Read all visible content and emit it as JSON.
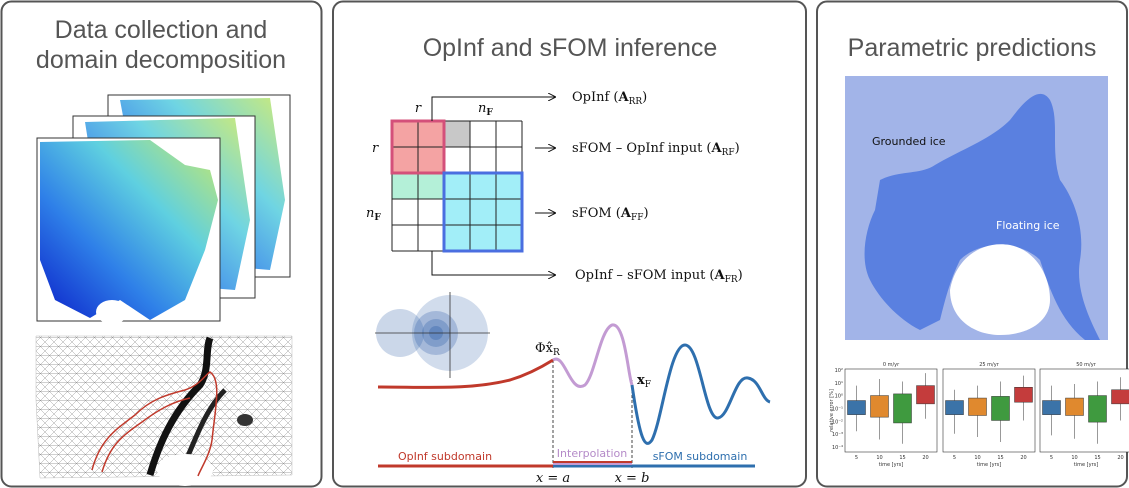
{
  "panels": [
    {
      "title_lines": [
        "Data collection and",
        "domain decomposition"
      ]
    },
    {
      "title": "OpInf and sFOM inference",
      "matrix": {
        "top_labels": [
          {
            "main": "r"
          },
          {
            "main": "n",
            "sub": "F"
          }
        ],
        "side_labels": [
          {
            "main": "r"
          },
          {
            "main": "n",
            "sub": "F"
          }
        ]
      },
      "arrows": [
        {
          "prefix": "OpInf (",
          "matrix": "A",
          "sub": "RR",
          "suffix": ")"
        },
        {
          "prefix": "sFOM – OpInf input (",
          "matrix": "A",
          "sub": "RF",
          "suffix": ")"
        },
        {
          "prefix": "sFOM (",
          "matrix": "A",
          "sub": "FF",
          "suffix": ")"
        },
        {
          "prefix": "OpInf – sFOM input (",
          "matrix": "A",
          "sub": "FR",
          "suffix": ")"
        }
      ],
      "curve_labels": [
        {
          "main": "Φx̂",
          "sub": "R"
        },
        {
          "main": "x",
          "sub": "F"
        }
      ],
      "subdomains": [
        "OpInf subdomain",
        "Interpolation",
        "sFOM subdomain"
      ],
      "bounds": [
        "x = a",
        "x = b"
      ]
    },
    {
      "title": "Parametric predictions",
      "map_labels": [
        "Grounded ice",
        "Floating ice"
      ],
      "boxplots": {
        "titles": [
          "0 m/yr",
          "25 m/yr",
          "50 m/yr"
        ],
        "ylabel": "relative error [%]",
        "xlabel": "time [yrs]",
        "xticks": [
          "5",
          "10",
          "15",
          "20"
        ],
        "yticks": [
          "10²",
          "10¹",
          "10⁰",
          "10⁻¹",
          "10⁻²",
          "10⁻³",
          "10⁻⁴"
        ]
      }
    }
  ]
}
